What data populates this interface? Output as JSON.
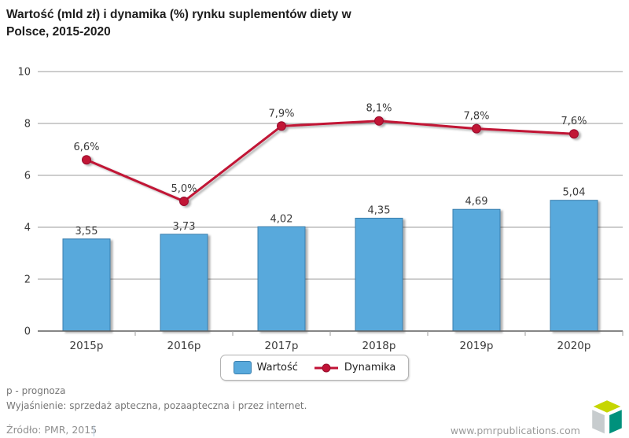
{
  "title": {
    "line1": "Wartość (mld zł) i dynamika (%) rynku suplementów diety w",
    "line2": "Polsce, 2015-2020"
  },
  "chart_data": {
    "type": "bar",
    "title": "Wartość (mld zł) i dynamika (%) rynku suplementów diety w Polsce, 2015-2020",
    "categories": [
      "2015p",
      "2016p",
      "2017p",
      "2018p",
      "2019p",
      "2020p"
    ],
    "series": [
      {
        "name": "Wartość",
        "type": "bar",
        "values": [
          3.55,
          3.73,
          4.02,
          4.35,
          4.69,
          5.04
        ],
        "labels": [
          "3,55",
          "3,73",
          "4,02",
          "4,35",
          "4,69",
          "5,04"
        ]
      },
      {
        "name": "Dynamika",
        "type": "line",
        "values": [
          6.6,
          5.0,
          7.9,
          8.1,
          7.8,
          7.6
        ],
        "labels": [
          "6,6%",
          "5,0%",
          "7,9%",
          "8,1%",
          "7,8%",
          "7,6%"
        ]
      }
    ],
    "xlabel": "",
    "ylabel": "",
    "ylim": [
      0,
      10
    ],
    "yticks": [
      0,
      2,
      4,
      6,
      8,
      10
    ],
    "grid": true,
    "legend_position": "bottom"
  },
  "legend": {
    "wartosc_label": "Wartość",
    "dynamika_label": "Dynamika"
  },
  "footnotes": {
    "line1": "p - prognoza",
    "line2": "Wyjaśnienie: sprzedaż apteczna, pozaapteczna i przez internet."
  },
  "footer": {
    "source": "Źródło: PMR, 2015",
    "website": "www.pmrpublications.com"
  },
  "colors": {
    "bar_fill": "#58a9dc",
    "bar_border": "#3b7fae",
    "line": "#c11236",
    "marker_border": "#97102d",
    "grid": "#9b9b9b",
    "axis": "#5f5f5f",
    "tick_text": "#3a3a3a",
    "label_text": "#3a3a3a",
    "logo_top": "#c6d600",
    "logo_left": "#c7ccce",
    "logo_right": "#00917c"
  }
}
